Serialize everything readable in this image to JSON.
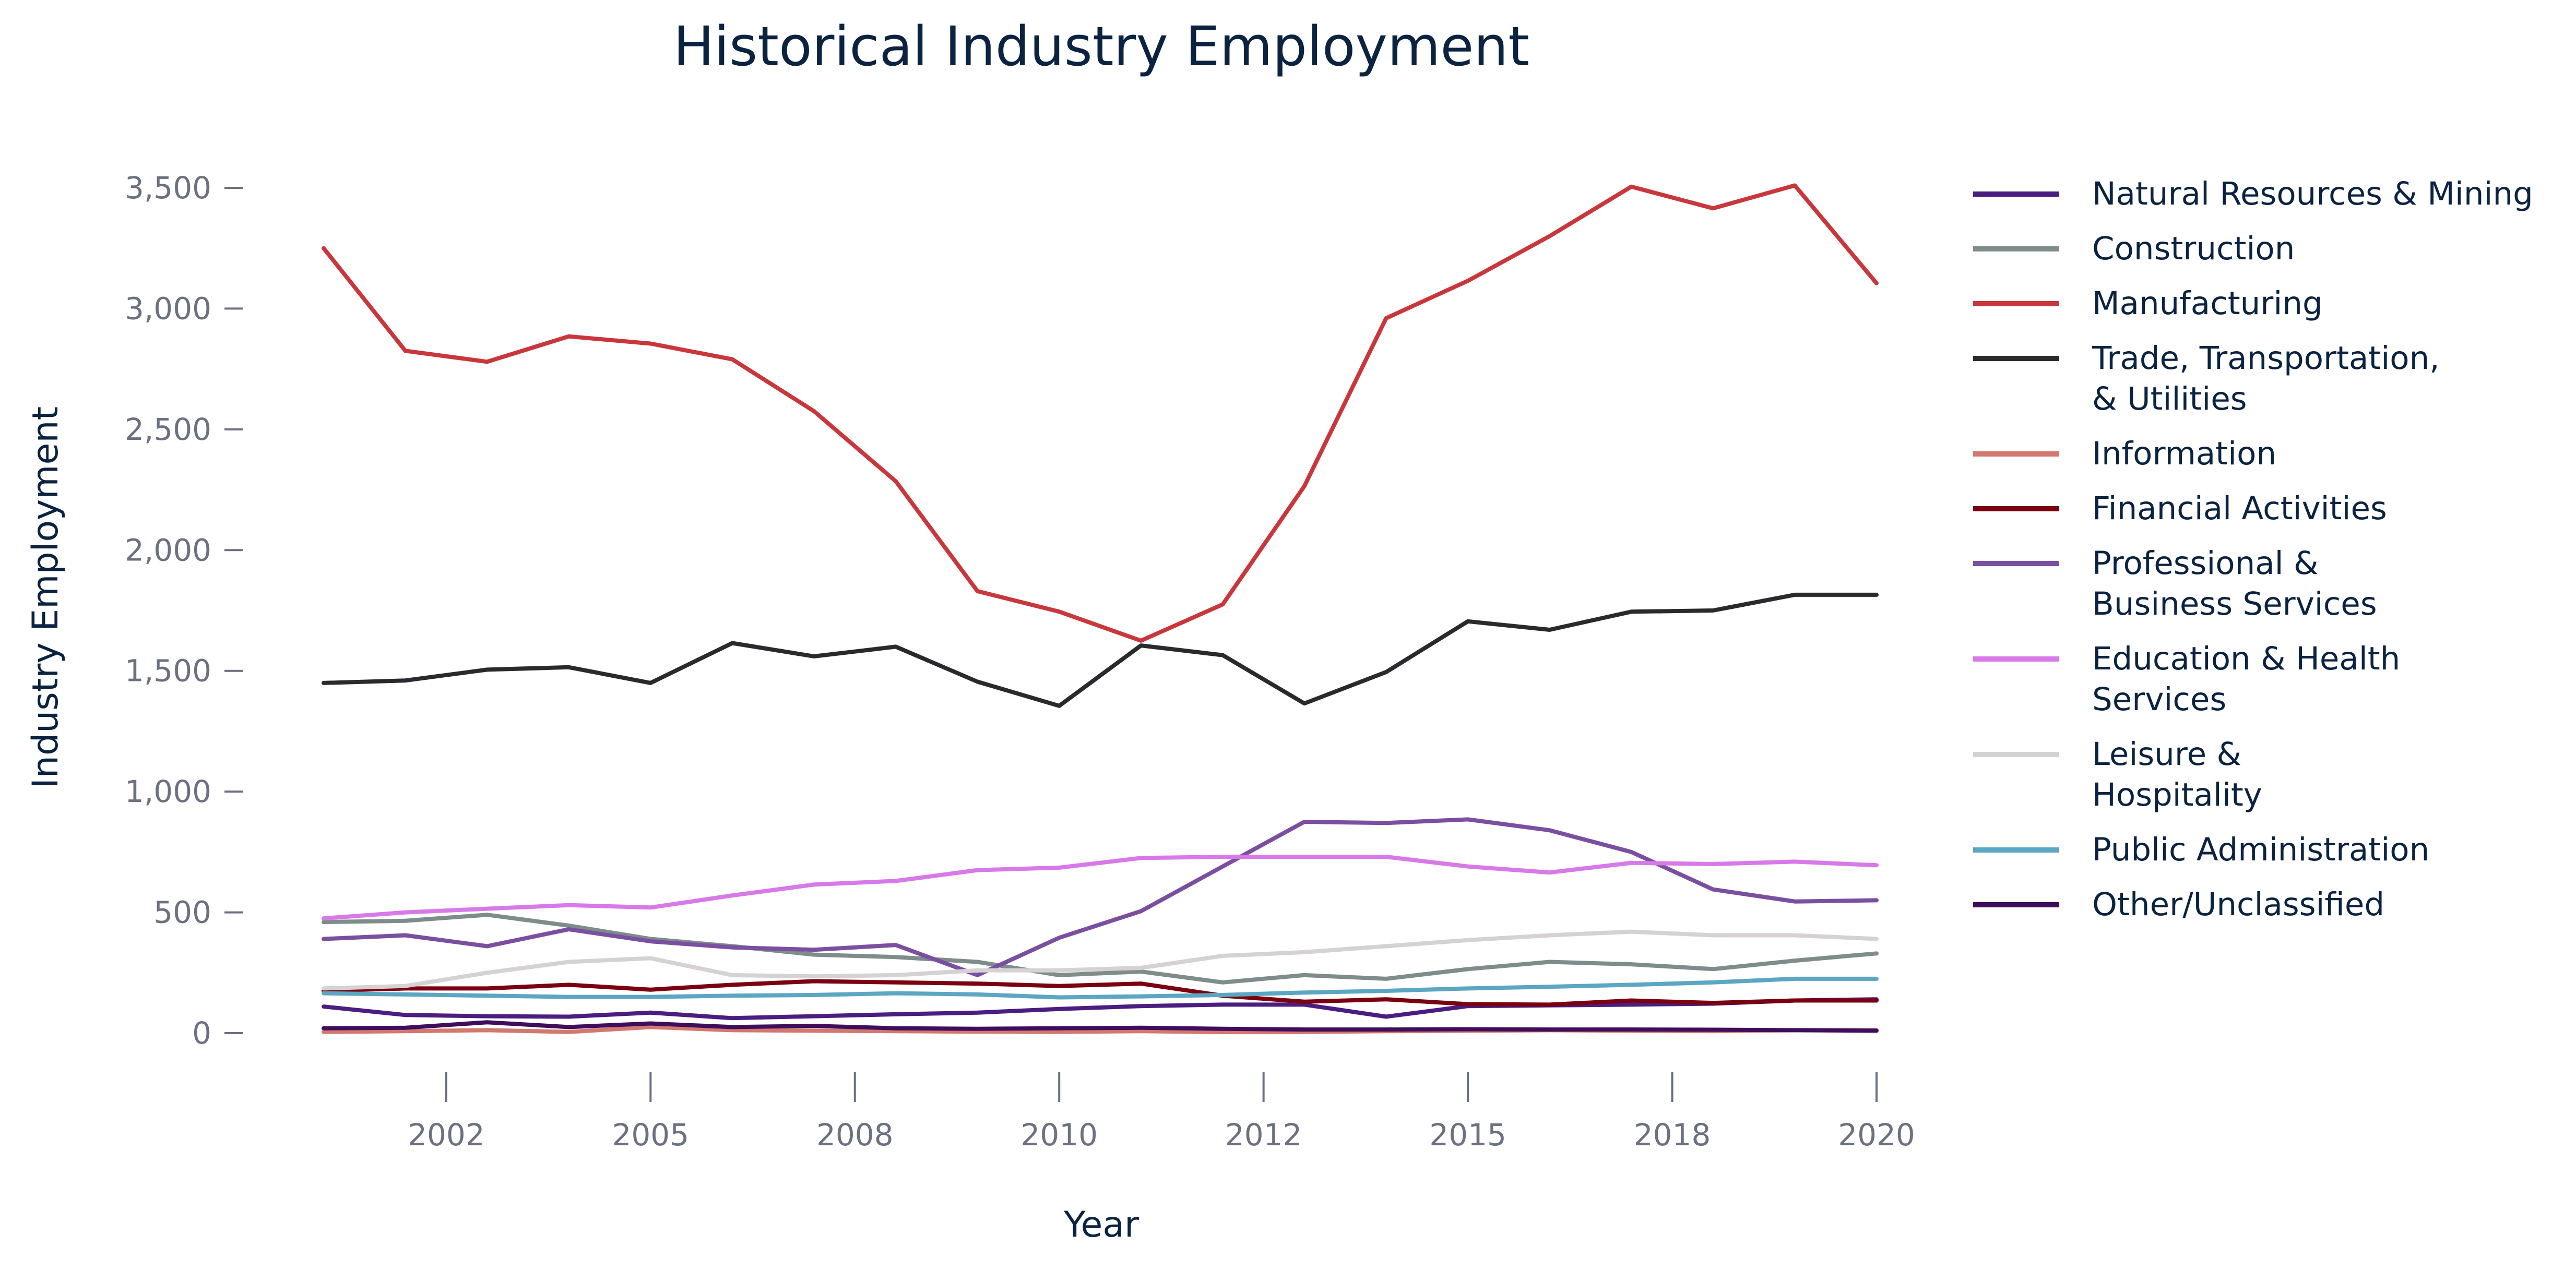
{
  "chart_data": {
    "type": "line",
    "title": "Historical Industry Employment",
    "xlabel": "Year",
    "ylabel": "Industry Employment",
    "x": [
      2000.2,
      2001.2,
      2002.2,
      2003.2,
      2004.2,
      2005.2,
      2006.2,
      2007.2,
      2008.2,
      2009.2,
      2010.2,
      2011.2,
      2012.2,
      2013.2,
      2014.2,
      2015.2,
      2016.2,
      2017.2,
      2018.2,
      2019.2
    ],
    "xlim": [
      2000.2,
      2019.2
    ],
    "x_ticks": [
      {
        "value": 2001.7,
        "label": "2002"
      },
      {
        "value": 2004.2,
        "label": "2005"
      },
      {
        "value": 2006.7,
        "label": "2008"
      },
      {
        "value": 2009.2,
        "label": "2010"
      },
      {
        "value": 2011.7,
        "label": "2012"
      },
      {
        "value": 2014.2,
        "label": "2015"
      },
      {
        "value": 2016.7,
        "label": "2018"
      },
      {
        "value": 2019.2,
        "label": "2020"
      }
    ],
    "ylim": [
      0,
      3500
    ],
    "y_ticks": [
      {
        "value": 0,
        "label": "0"
      },
      {
        "value": 500,
        "label": "500"
      },
      {
        "value": 1000,
        "label": "1,000"
      },
      {
        "value": 1500,
        "label": "1,500"
      },
      {
        "value": 2000,
        "label": "2,000"
      },
      {
        "value": 2500,
        "label": "2,500"
      },
      {
        "value": 3000,
        "label": "3,000"
      },
      {
        "value": 3500,
        "label": "3,500"
      }
    ],
    "grid": false,
    "legend_position": "right",
    "series": [
      {
        "name": "Natural Resources & Mining",
        "color": "#4b1d80",
        "label_lines": [
          "Natural Resources & Mining"
        ],
        "values": [
          110,
          75,
          70,
          68,
          85,
          62,
          70,
          78,
          85,
          100,
          112,
          118,
          118,
          68,
          112,
          115,
          118,
          122,
          135,
          140
        ]
      },
      {
        "name": "Construction",
        "color": "#7f8c8c",
        "label_lines": [
          "Construction"
        ],
        "values": [
          460,
          465,
          490,
          445,
          390,
          360,
          325,
          315,
          295,
          240,
          255,
          210,
          240,
          225,
          265,
          295,
          285,
          265,
          300,
          330
        ]
      },
      {
        "name": "Manufacturing",
        "color": "#c8373c",
        "label_lines": [
          "Manufacturing"
        ],
        "values": [
          3250,
          2825,
          2780,
          2885,
          2855,
          2790,
          2575,
          2285,
          1830,
          1745,
          1625,
          1775,
          2265,
          2960,
          3115,
          3300,
          3505,
          3415,
          3510,
          3105
        ]
      },
      {
        "name": "Trade, Transportation, & Utilities",
        "color": "#2a2a2e",
        "label_lines": [
          "Trade, Transportation,",
          "& Utilities"
        ],
        "values": [
          1450,
          1460,
          1505,
          1515,
          1450,
          1615,
          1560,
          1600,
          1455,
          1355,
          1605,
          1565,
          1365,
          1495,
          1705,
          1670,
          1745,
          1750,
          1815,
          1815
        ]
      },
      {
        "name": "Information",
        "color": "#d2786e",
        "label_lines": [
          "Information"
        ],
        "values": [
          5,
          8,
          12,
          5,
          25,
          12,
          10,
          8,
          6,
          5,
          8,
          4,
          5,
          8,
          10,
          12,
          10,
          8,
          12,
          12
        ]
      },
      {
        "name": "Financial Activities",
        "color": "#7a0010",
        "label_lines": [
          "Financial Activities"
        ],
        "values": [
          175,
          185,
          185,
          200,
          180,
          200,
          215,
          210,
          205,
          195,
          205,
          155,
          130,
          140,
          120,
          118,
          135,
          125,
          135,
          135
        ]
      },
      {
        "name": "Professional & Business Services",
        "color": "#7b4fa0",
        "label_lines": [
          "Professional &",
          "Business Services"
        ],
        "values": [
          390,
          405,
          360,
          430,
          380,
          355,
          345,
          365,
          240,
          395,
          505,
          690,
          875,
          870,
          885,
          840,
          750,
          595,
          545,
          550
        ]
      },
      {
        "name": "Education & Health Services",
        "color": "#d77ae8",
        "label_lines": [
          "Education & Health",
          "Services"
        ],
        "values": [
          475,
          500,
          515,
          530,
          520,
          570,
          615,
          630,
          675,
          685,
          725,
          730,
          730,
          730,
          690,
          665,
          705,
          700,
          710,
          695
        ]
      },
      {
        "name": "Leisure & Hospitality",
        "color": "#d6d2d4",
        "label_lines": [
          "Leisure &",
          "Hospitality"
        ],
        "values": [
          185,
          195,
          250,
          295,
          310,
          240,
          235,
          240,
          260,
          260,
          270,
          320,
          335,
          360,
          385,
          405,
          420,
          405,
          405,
          390
        ]
      },
      {
        "name": "Public Administration",
        "color": "#5ba6c2",
        "label_lines": [
          "Public Administration"
        ],
        "values": [
          165,
          160,
          155,
          150,
          150,
          155,
          158,
          165,
          160,
          148,
          152,
          158,
          168,
          175,
          185,
          192,
          200,
          210,
          225,
          225
        ]
      },
      {
        "name": "Other/Unclassified",
        "color": "#3f0d5c",
        "label_lines": [
          "Other/Unclassified"
        ],
        "values": [
          20,
          22,
          45,
          25,
          40,
          25,
          30,
          20,
          18,
          20,
          22,
          18,
          15,
          15,
          16,
          15,
          15,
          14,
          12,
          10
        ]
      }
    ]
  }
}
